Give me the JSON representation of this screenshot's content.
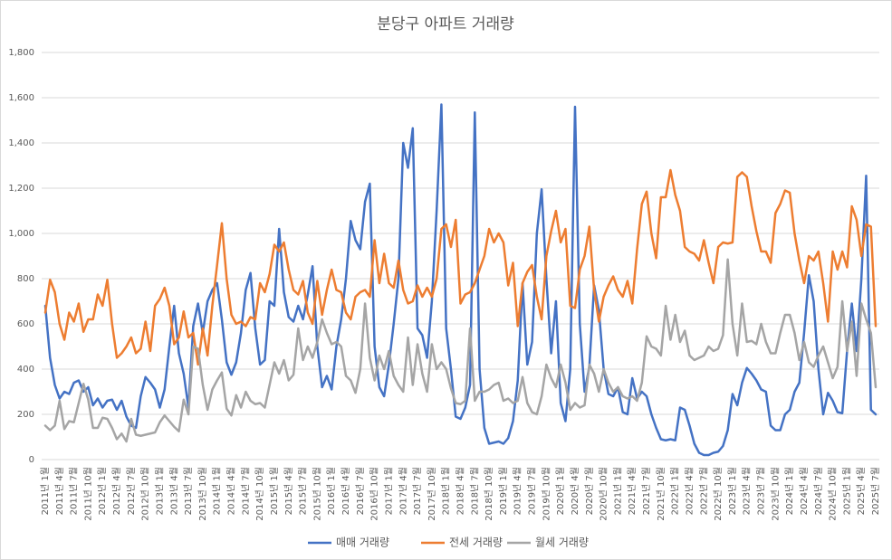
{
  "chart_data": {
    "type": "line",
    "title": "분당구 아파트 거래량",
    "categories": [
      "2011년 1월",
      null,
      null,
      "2011년 4월",
      null,
      null,
      "2011년 7월",
      null,
      null,
      "2011년 10월",
      null,
      null,
      "2012년 1월",
      null,
      null,
      "2012년 4월",
      null,
      null,
      "2012년 7월",
      null,
      null,
      "2012년 10월",
      null,
      null,
      "2013년 1월",
      null,
      null,
      "2013년 4월",
      null,
      null,
      "2013년 7월",
      null,
      null,
      "2013년 10월",
      null,
      null,
      "2014년 1월",
      null,
      null,
      "2014년 4월",
      null,
      null,
      "2014년 7월",
      null,
      null,
      "2014년 10월",
      null,
      null,
      "2015년 1월",
      null,
      null,
      "2015년 4월",
      null,
      null,
      "2015년 7월",
      null,
      null,
      "2015년 10월",
      null,
      null,
      "2016년 1월",
      null,
      null,
      "2016년 4월",
      null,
      null,
      "2016년 7월",
      null,
      null,
      "2016년 10월",
      null,
      null,
      "2017년 1월",
      null,
      null,
      "2017년 4월",
      null,
      null,
      "2017년 7월",
      null,
      null,
      "2017년 10월",
      null,
      null,
      "2018년 1월",
      null,
      null,
      "2018년 4월",
      null,
      null,
      "2018년 7월",
      null,
      null,
      "2018년 10월",
      null,
      null,
      "2019년 1월",
      null,
      null,
      "2019년 4월",
      null,
      null,
      "2019년 7월",
      null,
      null,
      "2019년 10월",
      null,
      null,
      "2020년 1월",
      null,
      null,
      "2020년 4월",
      null,
      null,
      "2020년 7월",
      null,
      null,
      "2020년 10월",
      null,
      null,
      "2021년 1월",
      null,
      null,
      "2021년 4월",
      null,
      null,
      "2021년 7월",
      null,
      null,
      "2021년 10월",
      null,
      null,
      "2022년 1월",
      null,
      null,
      "2022년 4월",
      null,
      null,
      "2022년 7월",
      null,
      null,
      "2022년 10월",
      null,
      null,
      "2023년 1월",
      null,
      null,
      "2023년 4월",
      null,
      null,
      "2023년 7월",
      null,
      null,
      "2023년 10월",
      null,
      null,
      "2024년 1월",
      null,
      null,
      "2024년 4월",
      null,
      null,
      "2024년 7월",
      null,
      null,
      "2024년 10월",
      null,
      null,
      "2025년 1월",
      null,
      null,
      "2025년 4월",
      null,
      null,
      "2025년 7월"
    ],
    "series": [
      {
        "name": "매매 거래량",
        "color": "#4472c4",
        "values": [
          680,
          450,
          330,
          270,
          300,
          290,
          340,
          350,
          300,
          320,
          240,
          270,
          230,
          260,
          265,
          220,
          260,
          190,
          150,
          140,
          280,
          365,
          340,
          310,
          230,
          310,
          500,
          680,
          470,
          380,
          230,
          590,
          690,
          560,
          700,
          750,
          780,
          620,
          430,
          375,
          430,
          560,
          750,
          825,
          580,
          420,
          440,
          700,
          680,
          1020,
          740,
          630,
          610,
          680,
          620,
          730,
          855,
          500,
          320,
          370,
          310,
          500,
          620,
          800,
          1055,
          970,
          930,
          1140,
          1220,
          500,
          320,
          280,
          420,
          600,
          800,
          1400,
          1290,
          1465,
          580,
          550,
          450,
          700,
          1100,
          1570,
          580,
          400,
          190,
          180,
          230,
          330,
          1535,
          400,
          140,
          70,
          75,
          80,
          70,
          95,
          170,
          350,
          780,
          420,
          520,
          1000,
          1195,
          800,
          470,
          700,
          250,
          170,
          400,
          1560,
          600,
          300,
          410,
          770,
          660,
          400,
          290,
          280,
          320,
          210,
          200,
          360,
          270,
          300,
          280,
          200,
          140,
          90,
          85,
          90,
          85,
          230,
          220,
          150,
          70,
          30,
          20,
          20,
          30,
          35,
          60,
          130,
          290,
          240,
          340,
          405,
          380,
          350,
          310,
          300,
          150,
          130,
          130,
          200,
          220,
          300,
          340,
          560,
          815,
          700,
          400,
          200,
          295,
          260,
          210,
          205,
          480,
          690,
          480,
          800,
          1255,
          220,
          200
        ]
      },
      {
        "name": "전세 거래량",
        "color": "#ed7d31",
        "values": [
          650,
          795,
          740,
          600,
          530,
          650,
          610,
          690,
          565,
          620,
          620,
          730,
          680,
          795,
          600,
          450,
          470,
          500,
          540,
          470,
          490,
          610,
          480,
          680,
          710,
          760,
          680,
          510,
          540,
          655,
          540,
          560,
          420,
          580,
          460,
          680,
          860,
          1045,
          800,
          640,
          600,
          610,
          590,
          630,
          620,
          780,
          740,
          820,
          950,
          920,
          960,
          840,
          750,
          730,
          790,
          650,
          600,
          790,
          640,
          750,
          840,
          750,
          740,
          650,
          620,
          720,
          740,
          750,
          720,
          970,
          780,
          910,
          780,
          760,
          880,
          750,
          690,
          700,
          770,
          720,
          760,
          720,
          800,
          1020,
          1040,
          940,
          1060,
          690,
          730,
          740,
          780,
          840,
          900,
          1020,
          960,
          1000,
          960,
          770,
          870,
          590,
          780,
          830,
          860,
          720,
          620,
          900,
          1010,
          1100,
          960,
          1020,
          680,
          670,
          840,
          900,
          1030,
          750,
          610,
          720,
          770,
          810,
          750,
          720,
          790,
          690,
          930,
          1130,
          1185,
          1000,
          890,
          1160,
          1160,
          1280,
          1170,
          1100,
          940,
          920,
          910,
          880,
          970,
          870,
          780,
          940,
          960,
          955,
          960,
          1250,
          1270,
          1250,
          1120,
          1010,
          920,
          920,
          870,
          1090,
          1130,
          1190,
          1180,
          1000,
          880,
          780,
          900,
          880,
          920,
          780,
          610,
          920,
          840,
          920,
          850,
          1120,
          1060,
          900,
          1040,
          1030,
          590
        ]
      },
      {
        "name": "월세 거래량",
        "color": "#a5a5a5",
        "values": [
          150,
          130,
          150,
          260,
          135,
          170,
          165,
          250,
          335,
          265,
          140,
          140,
          185,
          180,
          140,
          90,
          115,
          80,
          180,
          110,
          105,
          110,
          115,
          120,
          165,
          195,
          170,
          145,
          125,
          265,
          200,
          500,
          490,
          330,
          220,
          310,
          350,
          385,
          225,
          195,
          285,
          230,
          300,
          260,
          245,
          250,
          230,
          330,
          430,
          380,
          440,
          350,
          375,
          580,
          440,
          500,
          450,
          520,
          620,
          560,
          510,
          520,
          500,
          370,
          350,
          295,
          400,
          690,
          450,
          350,
          460,
          400,
          480,
          370,
          330,
          300,
          540,
          330,
          510,
          380,
          300,
          510,
          400,
          430,
          400,
          315,
          250,
          245,
          260,
          580,
          260,
          300,
          300,
          310,
          330,
          340,
          260,
          270,
          250,
          260,
          365,
          250,
          210,
          200,
          280,
          420,
          360,
          320,
          420,
          340,
          220,
          250,
          230,
          240,
          420,
          380,
          300,
          400,
          340,
          300,
          320,
          280,
          270,
          280,
          260,
          340,
          545,
          500,
          490,
          460,
          680,
          530,
          640,
          520,
          570,
          460,
          440,
          450,
          460,
          500,
          480,
          490,
          550,
          885,
          600,
          460,
          690,
          520,
          525,
          510,
          600,
          520,
          470,
          470,
          560,
          640,
          640,
          560,
          440,
          520,
          430,
          410,
          460,
          500,
          430,
          360,
          410,
          700,
          480,
          610,
          370,
          690,
          620,
          560,
          320
        ]
      }
    ],
    "ylim": [
      0,
      1800
    ],
    "yticks": [
      0,
      200,
      400,
      600,
      800,
      {
        "value": 1000,
        "label": "1,000"
      },
      {
        "value": 1200,
        "label": "1,200"
      },
      {
        "value": 1400,
        "label": "1,400"
      },
      {
        "value": 1600,
        "label": "1,600"
      },
      {
        "value": 1800,
        "label": "1,800"
      }
    ],
    "grid": true,
    "legend": "bottom"
  }
}
